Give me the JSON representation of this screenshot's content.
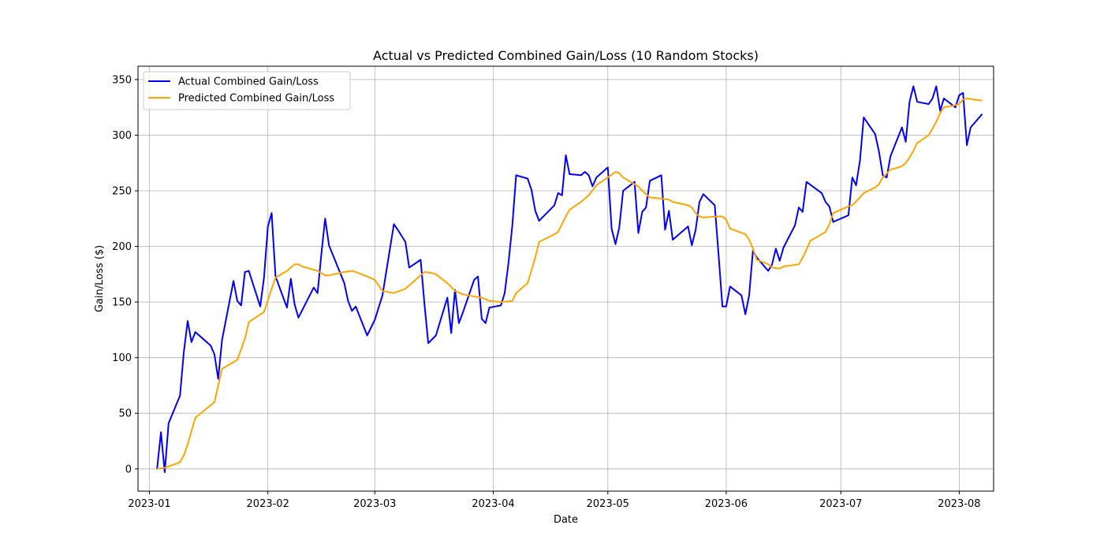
{
  "chart_data": {
    "type": "line",
    "title": "Actual vs Predicted Combined Gain/Loss (10 Random Stocks)",
    "xlabel": "Date",
    "ylabel": "Gain/Loss ($)",
    "xlim": [
      "2022-12-29",
      "2023-08-10"
    ],
    "ylim": [
      -20,
      362
    ],
    "grid": true,
    "legend_position": "upper-left",
    "x_ticks": [
      "2023-01-01",
      "2023-02-01",
      "2023-03-01",
      "2023-04-01",
      "2023-05-01",
      "2023-06-01",
      "2023-07-01",
      "2023-08-01"
    ],
    "x_tick_labels": [
      "2023-01",
      "2023-02",
      "2023-03",
      "2023-04",
      "2023-05",
      "2023-06",
      "2023-07",
      "2023-08"
    ],
    "y_ticks": [
      0,
      50,
      100,
      150,
      200,
      250,
      300,
      350
    ],
    "y_tick_labels": [
      "0",
      "50",
      "100",
      "150",
      "200",
      "250",
      "300",
      "350"
    ],
    "series": [
      {
        "name": "Actual Combined Gain/Loss",
        "color": "#0000ff",
        "points": [
          [
            "2023-01-03",
            0
          ],
          [
            "2023-01-04",
            33
          ],
          [
            "2023-01-05",
            -3
          ],
          [
            "2023-01-06",
            41
          ],
          [
            "2023-01-09",
            66
          ],
          [
            "2023-01-10",
            105
          ],
          [
            "2023-01-11",
            133
          ],
          [
            "2023-01-12",
            114
          ],
          [
            "2023-01-13",
            123
          ],
          [
            "2023-01-17",
            111
          ],
          [
            "2023-01-18",
            103
          ],
          [
            "2023-01-19",
            81
          ],
          [
            "2023-01-20",
            116
          ],
          [
            "2023-01-23",
            169
          ],
          [
            "2023-01-24",
            151
          ],
          [
            "2023-01-25",
            147
          ],
          [
            "2023-01-26",
            177
          ],
          [
            "2023-01-27",
            178
          ],
          [
            "2023-01-30",
            146
          ],
          [
            "2023-01-31",
            172
          ],
          [
            "2023-02-01",
            218
          ],
          [
            "2023-02-02",
            230
          ],
          [
            "2023-02-03",
            173
          ],
          [
            "2023-02-06",
            145
          ],
          [
            "2023-02-07",
            171
          ],
          [
            "2023-02-08",
            148
          ],
          [
            "2023-02-09",
            136
          ],
          [
            "2023-02-13",
            163
          ],
          [
            "2023-02-14",
            158
          ],
          [
            "2023-02-15",
            193
          ],
          [
            "2023-02-16",
            225
          ],
          [
            "2023-02-17",
            201
          ],
          [
            "2023-02-21",
            167
          ],
          [
            "2023-02-22",
            151
          ],
          [
            "2023-02-23",
            142
          ],
          [
            "2023-02-24",
            146
          ],
          [
            "2023-02-27",
            120
          ],
          [
            "2023-03-01",
            134
          ],
          [
            "2023-03-03",
            156
          ],
          [
            "2023-03-06",
            220
          ],
          [
            "2023-03-07",
            215
          ],
          [
            "2023-03-09",
            204
          ],
          [
            "2023-03-10",
            181
          ],
          [
            "2023-03-13",
            188
          ],
          [
            "2023-03-14",
            148
          ],
          [
            "2023-03-15",
            113
          ],
          [
            "2023-03-17",
            120
          ],
          [
            "2023-03-20",
            154
          ],
          [
            "2023-03-21",
            122
          ],
          [
            "2023-03-22",
            161
          ],
          [
            "2023-03-23",
            131
          ],
          [
            "2023-03-24",
            140
          ],
          [
            "2023-03-27",
            170
          ],
          [
            "2023-03-28",
            173
          ],
          [
            "2023-03-29",
            135
          ],
          [
            "2023-03-30",
            131
          ],
          [
            "2023-03-31",
            145
          ],
          [
            "2023-04-03",
            147
          ],
          [
            "2023-04-04",
            158
          ],
          [
            "2023-04-05",
            185
          ],
          [
            "2023-04-06",
            219
          ],
          [
            "2023-04-07",
            264
          ],
          [
            "2023-04-10",
            261
          ],
          [
            "2023-04-11",
            251
          ],
          [
            "2023-04-12",
            232
          ],
          [
            "2023-04-13",
            223
          ],
          [
            "2023-04-17",
            237
          ],
          [
            "2023-04-18",
            248
          ],
          [
            "2023-04-19",
            246
          ],
          [
            "2023-04-20",
            282
          ],
          [
            "2023-04-21",
            265
          ],
          [
            "2023-04-24",
            264
          ],
          [
            "2023-04-25",
            267
          ],
          [
            "2023-04-26",
            264
          ],
          [
            "2023-04-27",
            254
          ],
          [
            "2023-04-28",
            262
          ],
          [
            "2023-05-01",
            271
          ],
          [
            "2023-05-02",
            216
          ],
          [
            "2023-05-03",
            202
          ],
          [
            "2023-05-04",
            217
          ],
          [
            "2023-05-05",
            250
          ],
          [
            "2023-05-08",
            258
          ],
          [
            "2023-05-09",
            212
          ],
          [
            "2023-05-10",
            231
          ],
          [
            "2023-05-11",
            235
          ],
          [
            "2023-05-12",
            259
          ],
          [
            "2023-05-15",
            264
          ],
          [
            "2023-05-16",
            215
          ],
          [
            "2023-05-17",
            232
          ],
          [
            "2023-05-18",
            206
          ],
          [
            "2023-05-22",
            218
          ],
          [
            "2023-05-23",
            201
          ],
          [
            "2023-05-24",
            215
          ],
          [
            "2023-05-25",
            240
          ],
          [
            "2023-05-26",
            247
          ],
          [
            "2023-05-29",
            237
          ],
          [
            "2023-05-30",
            192
          ],
          [
            "2023-05-31",
            146
          ],
          [
            "2023-06-01",
            146
          ],
          [
            "2023-06-02",
            164
          ],
          [
            "2023-06-05",
            156
          ],
          [
            "2023-06-06",
            139
          ],
          [
            "2023-06-07",
            156
          ],
          [
            "2023-06-08",
            196
          ],
          [
            "2023-06-09",
            190
          ],
          [
            "2023-06-12",
            178
          ],
          [
            "2023-06-13",
            184
          ],
          [
            "2023-06-14",
            198
          ],
          [
            "2023-06-15",
            187
          ],
          [
            "2023-06-16",
            199
          ],
          [
            "2023-06-19",
            219
          ],
          [
            "2023-06-20",
            235
          ],
          [
            "2023-06-21",
            231
          ],
          [
            "2023-06-22",
            258
          ],
          [
            "2023-06-26",
            248
          ],
          [
            "2023-06-27",
            240
          ],
          [
            "2023-06-28",
            236
          ],
          [
            "2023-06-29",
            222
          ],
          [
            "2023-07-03",
            228
          ],
          [
            "2023-07-04",
            262
          ],
          [
            "2023-07-05",
            255
          ],
          [
            "2023-07-06",
            277
          ],
          [
            "2023-07-07",
            316
          ],
          [
            "2023-07-10",
            301
          ],
          [
            "2023-07-11",
            285
          ],
          [
            "2023-07-12",
            264
          ],
          [
            "2023-07-13",
            262
          ],
          [
            "2023-07-14",
            281
          ],
          [
            "2023-07-17",
            307
          ],
          [
            "2023-07-18",
            294
          ],
          [
            "2023-07-19",
            330
          ],
          [
            "2023-07-20",
            344
          ],
          [
            "2023-07-21",
            330
          ],
          [
            "2023-07-24",
            328
          ],
          [
            "2023-07-25",
            333
          ],
          [
            "2023-07-26",
            344
          ],
          [
            "2023-07-27",
            322
          ],
          [
            "2023-07-28",
            333
          ],
          [
            "2023-07-31",
            325
          ],
          [
            "2023-08-01",
            336
          ],
          [
            "2023-08-02",
            338
          ],
          [
            "2023-08-03",
            291
          ],
          [
            "2023-08-04",
            307
          ],
          [
            "2023-08-07",
            319
          ]
        ]
      },
      {
        "name": "Predicted Combined Gain/Loss",
        "color": "#ffa500",
        "points": [
          [
            "2023-01-03",
            0
          ],
          [
            "2023-01-05",
            1
          ],
          [
            "2023-01-09",
            6
          ],
          [
            "2023-01-10",
            12
          ],
          [
            "2023-01-11",
            22
          ],
          [
            "2023-01-13",
            46
          ],
          [
            "2023-01-18",
            60
          ],
          [
            "2023-01-20",
            90
          ],
          [
            "2023-01-24",
            98
          ],
          [
            "2023-01-26",
            117
          ],
          [
            "2023-01-27",
            132
          ],
          [
            "2023-01-31",
            141
          ],
          [
            "2023-02-02",
            162
          ],
          [
            "2023-02-03",
            172
          ],
          [
            "2023-02-06",
            178
          ],
          [
            "2023-02-08",
            184
          ],
          [
            "2023-02-09",
            184
          ],
          [
            "2023-02-10",
            182
          ],
          [
            "2023-02-14",
            178
          ],
          [
            "2023-02-16",
            174
          ],
          [
            "2023-02-17",
            174
          ],
          [
            "2023-02-21",
            177
          ],
          [
            "2023-02-23",
            178
          ],
          [
            "2023-02-24",
            177
          ],
          [
            "2023-02-27",
            173
          ],
          [
            "2023-03-01",
            170
          ],
          [
            "2023-03-03",
            160
          ],
          [
            "2023-03-06",
            158
          ],
          [
            "2023-03-09",
            162
          ],
          [
            "2023-03-13",
            174
          ],
          [
            "2023-03-14",
            177
          ],
          [
            "2023-03-16",
            176
          ],
          [
            "2023-03-17",
            175
          ],
          [
            "2023-03-20",
            167
          ],
          [
            "2023-03-22",
            160
          ],
          [
            "2023-03-24",
            157
          ],
          [
            "2023-03-27",
            155
          ],
          [
            "2023-03-29",
            154
          ],
          [
            "2023-03-31",
            151
          ],
          [
            "2023-04-03",
            150
          ],
          [
            "2023-04-06",
            151
          ],
          [
            "2023-04-07",
            158
          ],
          [
            "2023-04-10",
            167
          ],
          [
            "2023-04-12",
            190
          ],
          [
            "2023-04-13",
            204
          ],
          [
            "2023-04-17",
            211
          ],
          [
            "2023-04-18",
            213
          ],
          [
            "2023-04-20",
            227
          ],
          [
            "2023-04-21",
            233
          ],
          [
            "2023-04-24",
            240
          ],
          [
            "2023-04-26",
            246
          ],
          [
            "2023-04-28",
            255
          ],
          [
            "2023-05-01",
            262
          ],
          [
            "2023-05-03",
            267
          ],
          [
            "2023-05-04",
            266
          ],
          [
            "2023-05-05",
            262
          ],
          [
            "2023-05-08",
            256
          ],
          [
            "2023-05-09",
            254
          ],
          [
            "2023-05-10",
            250
          ],
          [
            "2023-05-12",
            244
          ],
          [
            "2023-05-15",
            243
          ],
          [
            "2023-05-17",
            242
          ],
          [
            "2023-05-18",
            240
          ],
          [
            "2023-05-22",
            237
          ],
          [
            "2023-05-23",
            235
          ],
          [
            "2023-05-24",
            230
          ],
          [
            "2023-05-25",
            227
          ],
          [
            "2023-05-26",
            226
          ],
          [
            "2023-05-30",
            227
          ],
          [
            "2023-05-31",
            227
          ],
          [
            "2023-06-01",
            224
          ],
          [
            "2023-06-02",
            216
          ],
          [
            "2023-06-06",
            211
          ],
          [
            "2023-06-07",
            206
          ],
          [
            "2023-06-08",
            198
          ],
          [
            "2023-06-09",
            188
          ],
          [
            "2023-06-12",
            184
          ],
          [
            "2023-06-13",
            181
          ],
          [
            "2023-06-15",
            180
          ],
          [
            "2023-06-16",
            182
          ],
          [
            "2023-06-20",
            184
          ],
          [
            "2023-06-21",
            190
          ],
          [
            "2023-06-22",
            197
          ],
          [
            "2023-06-23",
            205
          ],
          [
            "2023-06-27",
            213
          ],
          [
            "2023-06-28",
            220
          ],
          [
            "2023-06-29",
            230
          ],
          [
            "2023-07-03",
            236
          ],
          [
            "2023-07-04",
            237
          ],
          [
            "2023-07-06",
            244
          ],
          [
            "2023-07-07",
            248
          ],
          [
            "2023-07-10",
            253
          ],
          [
            "2023-07-11",
            256
          ],
          [
            "2023-07-12",
            262
          ],
          [
            "2023-07-14",
            269
          ],
          [
            "2023-07-17",
            272
          ],
          [
            "2023-07-18",
            275
          ],
          [
            "2023-07-19",
            280
          ],
          [
            "2023-07-20",
            286
          ],
          [
            "2023-07-21",
            293
          ],
          [
            "2023-07-24",
            300
          ],
          [
            "2023-07-25",
            306
          ],
          [
            "2023-07-26",
            312
          ],
          [
            "2023-07-27",
            320
          ],
          [
            "2023-07-28",
            325
          ],
          [
            "2023-07-31",
            327
          ],
          [
            "2023-08-01",
            328
          ],
          [
            "2023-08-02",
            332
          ],
          [
            "2023-08-03",
            333
          ],
          [
            "2023-08-07",
            331
          ]
        ]
      }
    ]
  }
}
